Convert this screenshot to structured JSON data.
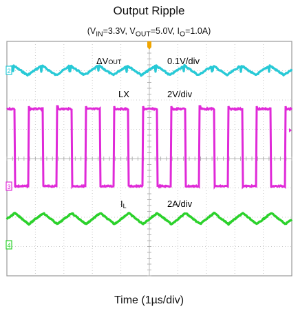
{
  "chart_data": {
    "type": "line",
    "title": "Output Ripple",
    "subtitle": "(V<sub>IN</sub>=3.3V, V<sub>OUT</sub>=5.0V, I<sub>O</sub>=1.0A)",
    "subtitle_plain": "(VIN=3.3V, VOUT=5.0V, IO=1.0A)",
    "xlabel": "Time (1µs/div)",
    "x_divisions": 10,
    "y_divisions": 8,
    "grid": true,
    "background": "oscilloscope grid",
    "colors": {
      "ch1": "#27c9d6",
      "ch2": "#e02ad8",
      "ch4": "#2bd12b",
      "grid": "#c9c9c9",
      "frame": "#9a9a9a",
      "trigger": "#f0a500"
    },
    "channel_markers": [
      "2",
      "3",
      "4"
    ],
    "series": [
      {
        "name": "ΔVOUT",
        "scale": "0.1V/div",
        "shape": "sawtooth ripple",
        "period_us": 1.0,
        "color_key": "ch1"
      },
      {
        "name": "LX",
        "scale": "2V/div",
        "shape": "square wave",
        "period_us": 1.0,
        "duty_high": 0.5,
        "color_key": "ch2"
      },
      {
        "name": "IL",
        "scale": "2A/div",
        "shape": "triangle",
        "period_us": 1.0,
        "color_key": "ch4"
      }
    ],
    "annotations": {
      "vout_name": "ΔV",
      "vout_sub": "OUT",
      "vout_scale": "0.1V/div",
      "lx_name": "LX",
      "lx_scale": "2V/div",
      "il_name": "I",
      "il_sub": "L",
      "il_scale": "2A/div"
    }
  }
}
